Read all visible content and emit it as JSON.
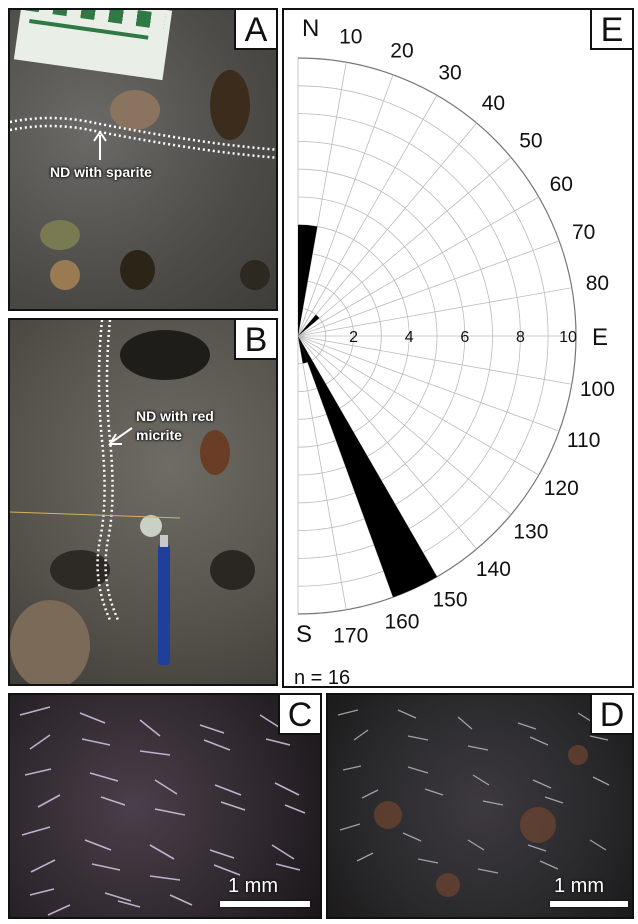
{
  "panels": {
    "A": {
      "letter": "A",
      "label": "ND with sparite"
    },
    "B": {
      "letter": "B",
      "label_line1": "ND with red",
      "label_line2": "micrite"
    },
    "C": {
      "letter": "C",
      "scale": "1 mm"
    },
    "D": {
      "letter": "D",
      "scale": "1 mm"
    },
    "E": {
      "letter": "E"
    }
  },
  "chart_data": {
    "type": "rose",
    "panel": "E",
    "orientation": "half-circle, 0–180°",
    "cardinal_labels": {
      "north": "N",
      "east": "E",
      "south": "S"
    },
    "angle_labels": [
      "10",
      "20",
      "30",
      "40",
      "50",
      "60",
      "70",
      "80",
      "100",
      "110",
      "120",
      "130",
      "140",
      "150",
      "160",
      "170"
    ],
    "radial_ticks": [
      "2",
      "4",
      "6",
      "8",
      "10"
    ],
    "radial_max": 10,
    "bin_width_deg": 10,
    "bins": [
      {
        "start": 0,
        "end": 10,
        "count": 4
      },
      {
        "start": 40,
        "end": 50,
        "count": 1
      },
      {
        "start": 150,
        "end": 160,
        "count": 10
      },
      {
        "start": 160,
        "end": 170,
        "count": 1
      }
    ],
    "note": "n = 16",
    "grid": true
  }
}
